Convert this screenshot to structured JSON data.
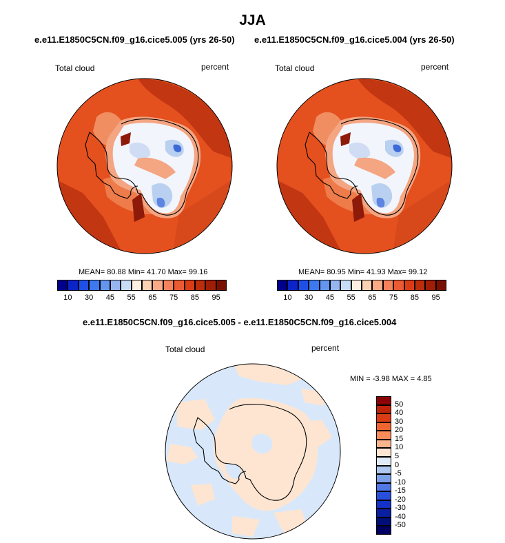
{
  "title": "JJA",
  "panels": [
    {
      "case_title": "e.e11.E1850C5CN.f09_g16.cice5.005 (yrs 26-50)",
      "left_label": "Total cloud",
      "right_label": "percent",
      "stats": {
        "mean": "80.88",
        "min": "41.70",
        "max": "99.16"
      },
      "stats_text": "MEAN=  80.88  Min=  41.70  Max=  99.16"
    },
    {
      "case_title": "e.e11.E1850C5CN.f09_g16.cice5.004 (yrs 26-50)",
      "left_label": "Total cloud",
      "right_label": "percent",
      "stats": {
        "mean": "80.95",
        "min": "41.93",
        "max": "99.12"
      },
      "stats_text": "MEAN=  80.95  Min=  41.93  Max=  99.12"
    }
  ],
  "abs_colorbar": {
    "colors": [
      "#00008b",
      "#0a24c8",
      "#1e50e6",
      "#3c78f0",
      "#6496f0",
      "#96b4f0",
      "#c8dcf5",
      "#fff0e1",
      "#fcd2b4",
      "#faaa87",
      "#f5825a",
      "#eb5a32",
      "#dc3c14",
      "#be2d0a",
      "#a01e05",
      "#780f00"
    ],
    "labels": [
      "10",
      "30",
      "45",
      "55",
      "65",
      "75",
      "85",
      "95"
    ]
  },
  "diff_panel": {
    "title": "e.e11.E1850C5CN.f09_g16.cice5.005 - e.e11.E1850C5CN.f09_g16.cice5.004",
    "left_label": "Total cloud",
    "right_label": "percent",
    "stats_text": "MIN =  -3.98 MAX =   4.85",
    "stats": {
      "min": "-3.98",
      "max": "4.85"
    }
  },
  "diff_colorbar": {
    "colors_top_to_bottom": [
      "#8b0000",
      "#c0230a",
      "#dc3c14",
      "#f06432",
      "#fa8c5a",
      "#fcb48c",
      "#ffe6d2",
      "#e1ebf5",
      "#afc8f0",
      "#7da0eb",
      "#5078e6",
      "#2850dc",
      "#1432c8",
      "#0a1ea0",
      "#000f78",
      "#000064"
    ],
    "labels": [
      "50",
      "40",
      "30",
      "20",
      "15",
      "10",
      "5",
      "0",
      "-5",
      "-10",
      "-15",
      "-20",
      "-30",
      "-40",
      "-50"
    ]
  },
  "map_colors": {
    "ocean_main": "#e4501e",
    "ocean_dark": "#c23612",
    "ocean_deep": "#8e1a0a",
    "coast_light": "#f4a582",
    "ice_white": "#f2f5fb",
    "ice_blue": "#b9d0f0",
    "ice_dark": "#3c6ad8",
    "diff_pos": "#fde5d2",
    "diff_neg": "#d8e8fa"
  }
}
